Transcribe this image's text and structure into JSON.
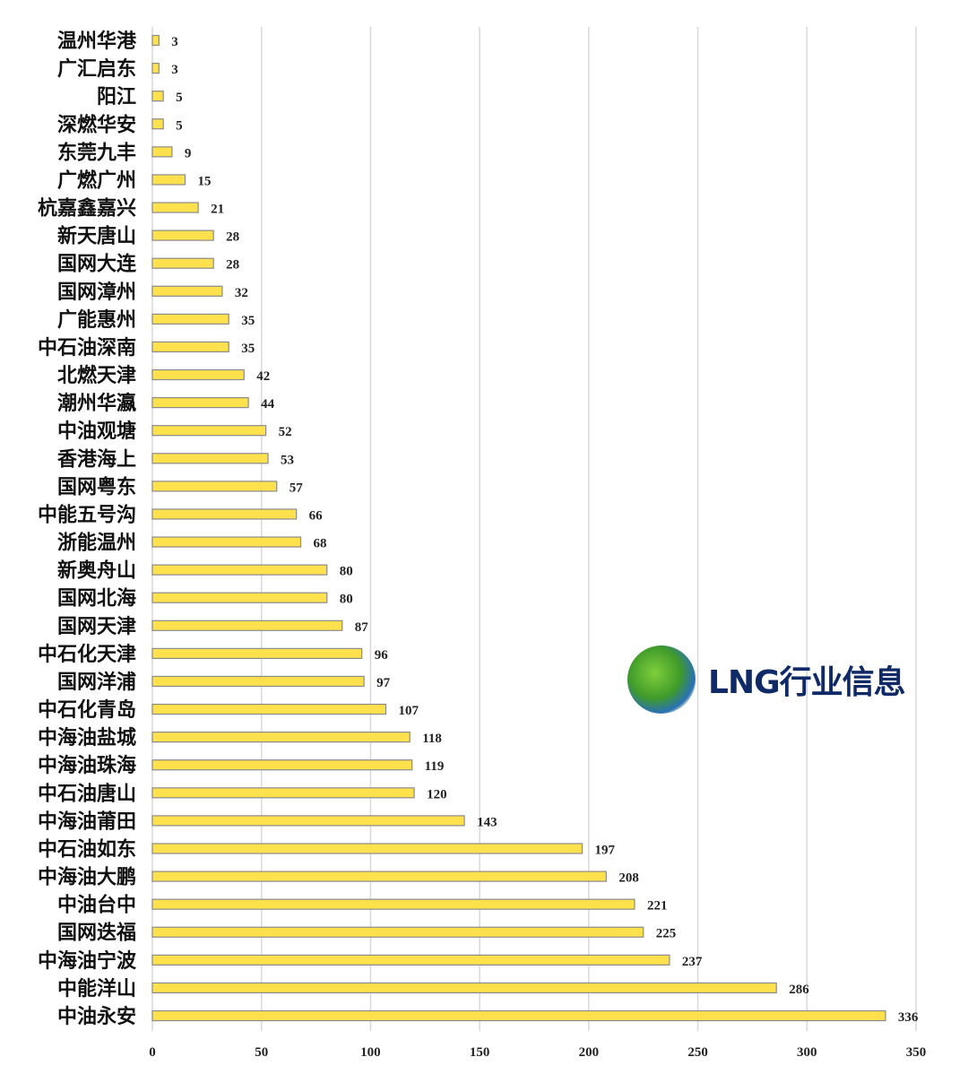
{
  "chart_data": {
    "type": "bar",
    "orientation": "horizontal",
    "title": "",
    "xlabel": "",
    "ylabel": "",
    "xlim": [
      0,
      350
    ],
    "xticks": [
      0,
      50,
      100,
      150,
      200,
      250,
      300,
      350
    ],
    "grid": "vertical",
    "bar_color": "#FFE14D",
    "bar_border": "#8a8a8a",
    "categories": [
      "温州华港",
      "广汇启东",
      "阳江",
      "深燃华安",
      "东莞九丰",
      "广燃广州",
      "杭嘉鑫嘉兴",
      "新天唐山",
      "国网大连",
      "国网漳州",
      "广能惠州",
      "中石油深南",
      "北燃天津",
      "潮州华瀛",
      "中油观塘",
      "香港海上",
      "国网粤东",
      "中能五号沟",
      "浙能温州",
      "新奥舟山",
      "国网北海",
      "国网天津",
      "中石化天津",
      "国网洋浦",
      "中石化青岛",
      "中海油盐城",
      "中海油珠海",
      "中石油唐山",
      "中海油莆田",
      "中石油如东",
      "中海油大鹏",
      "中油台中",
      "国网迭福",
      "中海油宁波",
      "中能洋山",
      "中油永安"
    ],
    "values": [
      3,
      3,
      5,
      5,
      9,
      15,
      21,
      28,
      28,
      32,
      35,
      35,
      42,
      44,
      52,
      53,
      57,
      66,
      68,
      80,
      80,
      87,
      96,
      97,
      107,
      118,
      119,
      120,
      143,
      197,
      208,
      221,
      225,
      237,
      286,
      336
    ]
  },
  "logo": {
    "text": "LNG行业信息"
  }
}
